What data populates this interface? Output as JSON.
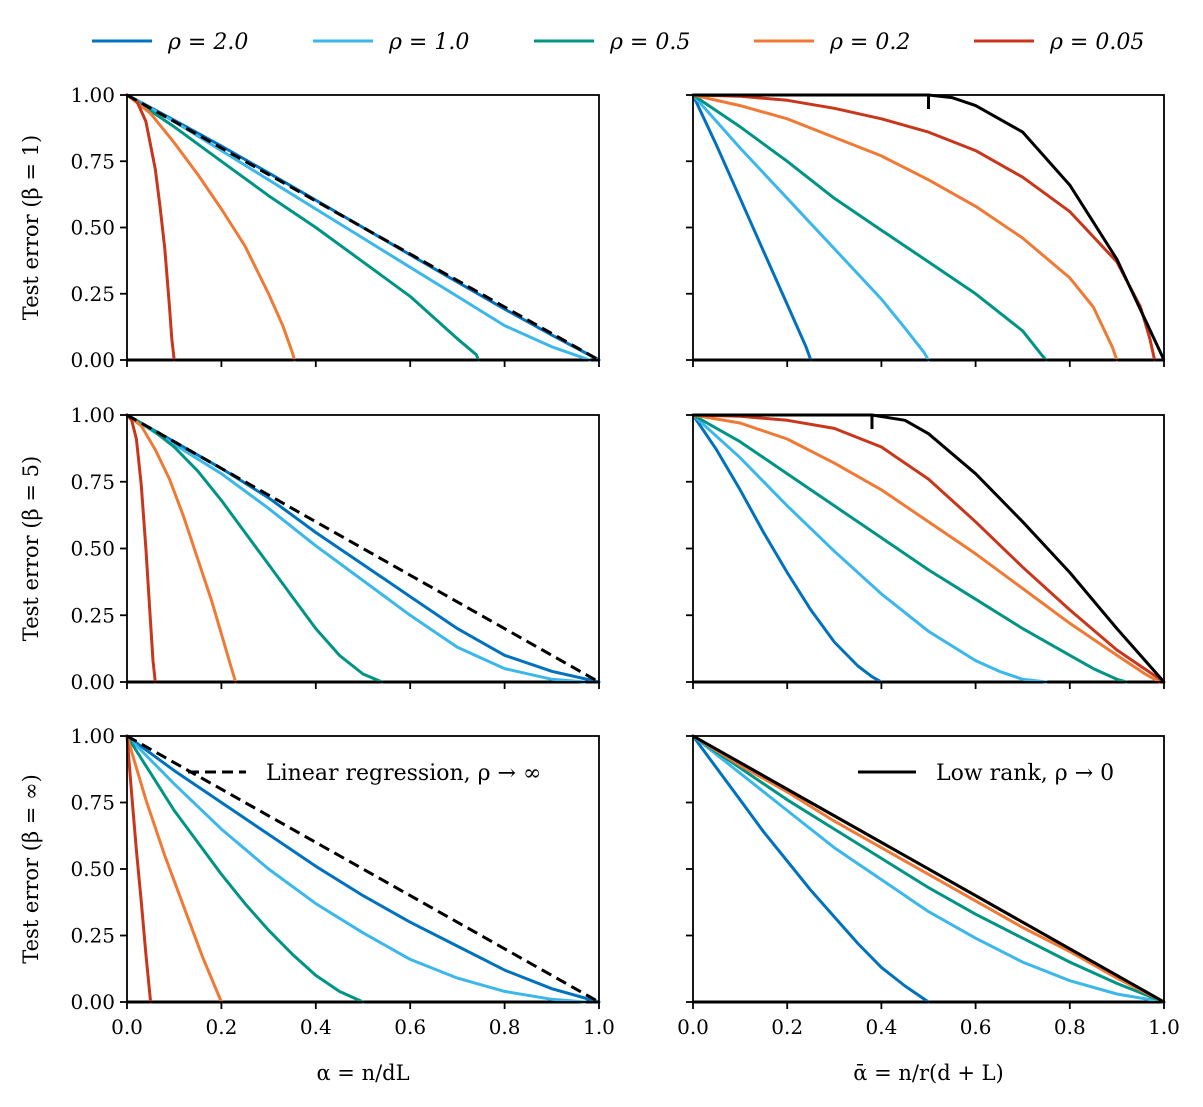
{
  "chart_data": {
    "type": "line",
    "legend": [
      {
        "label": "ρ = 2.0",
        "color": "#0072bd"
      },
      {
        "label": "ρ = 1.0",
        "color": "#3bb7ea"
      },
      {
        "label": "ρ = 0.5",
        "color": "#009485"
      },
      {
        "label": "ρ = 0.2",
        "color": "#ef7a35"
      },
      {
        "label": "ρ = 0.05",
        "color": "#c8361b"
      }
    ],
    "xlim": [
      0,
      1
    ],
    "ylim": [
      0,
      1
    ],
    "xticks": [
      "0.0",
      "0.2",
      "0.4",
      "0.6",
      "0.8",
      "1.0"
    ],
    "yticks": [
      "0.00",
      "0.25",
      "0.50",
      "0.75",
      "1.00"
    ],
    "row_ylabels": [
      "Test error (β = 1)",
      "Test error (β = 5)",
      "Test error (β = ∞)"
    ],
    "xlabels": [
      "α = n/dL",
      "ᾱ = n/r(d + L)"
    ],
    "reference": {
      "left_label": "Linear regression, ρ → ∞",
      "left_style": "dashed",
      "right_label": "Low rank, ρ → 0",
      "right_style": "solid",
      "color": "#000000"
    },
    "panels": [
      {
        "row": 0,
        "col": 0,
        "series": [
          {
            "name": "ρ = 2.0",
            "x": [
              0,
              0.1,
              0.2,
              0.3,
              0.4,
              0.5,
              0.6,
              0.7,
              0.8,
              0.9,
              1.0
            ],
            "y": [
              1.0,
              0.905,
              0.807,
              0.706,
              0.603,
              0.5,
              0.397,
              0.294,
              0.192,
              0.094,
              0.0
            ]
          },
          {
            "name": "ρ = 1.0",
            "x": [
              0,
              0.1,
              0.2,
              0.3,
              0.4,
              0.5,
              0.6,
              0.7,
              0.8,
              0.9,
              0.98
            ],
            "y": [
              1.0,
              0.9,
              0.79,
              0.68,
              0.57,
              0.46,
              0.35,
              0.24,
              0.13,
              0.05,
              0.0
            ]
          },
          {
            "name": "ρ = 0.5",
            "x": [
              0,
              0.1,
              0.2,
              0.3,
              0.4,
              0.5,
              0.6,
              0.7,
              0.74,
              0.745
            ],
            "y": [
              1.0,
              0.88,
              0.75,
              0.62,
              0.5,
              0.37,
              0.24,
              0.08,
              0.02,
              0.0
            ]
          },
          {
            "name": "ρ = 0.2",
            "x": [
              0,
              0.05,
              0.1,
              0.15,
              0.2,
              0.25,
              0.3,
              0.33,
              0.35,
              0.355
            ],
            "y": [
              1.0,
              0.93,
              0.82,
              0.7,
              0.57,
              0.43,
              0.25,
              0.13,
              0.03,
              0.0
            ]
          },
          {
            "name": "ρ = 0.05",
            "x": [
              0,
              0.02,
              0.04,
              0.06,
              0.07,
              0.08,
              0.09,
              0.095,
              0.1
            ],
            "y": [
              1.0,
              0.98,
              0.9,
              0.72,
              0.58,
              0.42,
              0.2,
              0.08,
              0.0
            ]
          }
        ],
        "reference_x": [
          0,
          1
        ],
        "reference_y": [
          1,
          0
        ]
      },
      {
        "row": 0,
        "col": 1,
        "series": [
          {
            "name": "ρ = 2.0",
            "x": [
              0,
              0.05,
              0.1,
              0.15,
              0.2,
              0.24,
              0.25
            ],
            "y": [
              1.0,
              0.81,
              0.61,
              0.41,
              0.21,
              0.05,
              0.0
            ]
          },
          {
            "name": "ρ = 1.0",
            "x": [
              0,
              0.1,
              0.2,
              0.3,
              0.4,
              0.45,
              0.49,
              0.5
            ],
            "y": [
              1.0,
              0.8,
              0.61,
              0.42,
              0.23,
              0.12,
              0.03,
              0.0
            ]
          },
          {
            "name": "ρ = 0.5",
            "x": [
              0,
              0.1,
              0.2,
              0.3,
              0.4,
              0.5,
              0.6,
              0.7,
              0.74,
              0.75
            ],
            "y": [
              1.0,
              0.88,
              0.75,
              0.61,
              0.49,
              0.37,
              0.25,
              0.11,
              0.02,
              0.0
            ]
          },
          {
            "name": "ρ = 0.2",
            "x": [
              0,
              0.1,
              0.2,
              0.3,
              0.4,
              0.5,
              0.6,
              0.7,
              0.8,
              0.85,
              0.89,
              0.9
            ],
            "y": [
              1.0,
              0.96,
              0.91,
              0.84,
              0.77,
              0.68,
              0.58,
              0.46,
              0.31,
              0.2,
              0.05,
              0.0
            ]
          },
          {
            "name": "ρ = 0.05",
            "x": [
              0,
              0.1,
              0.2,
              0.3,
              0.4,
              0.5,
              0.6,
              0.7,
              0.8,
              0.9,
              0.95,
              0.97,
              0.98
            ],
            "y": [
              1.0,
              0.995,
              0.98,
              0.95,
              0.91,
              0.86,
              0.79,
              0.69,
              0.56,
              0.37,
              0.2,
              0.08,
              0.0
            ]
          }
        ],
        "reference_x": [
          0,
          0.5,
          0.55,
          0.6,
          0.7,
          0.8,
          0.9,
          1.0
        ],
        "reference_y": [
          1,
          1,
          0.99,
          0.96,
          0.86,
          0.66,
          0.38,
          0.0
        ],
        "reference_marker": {
          "x": 0.5,
          "y": 1.0
        }
      },
      {
        "row": 1,
        "col": 0,
        "series": [
          {
            "name": "ρ = 2.0",
            "x": [
              0,
              0.1,
              0.2,
              0.3,
              0.4,
              0.5,
              0.6,
              0.7,
              0.8,
              0.9,
              1.0
            ],
            "y": [
              1.0,
              0.9,
              0.8,
              0.69,
              0.56,
              0.44,
              0.32,
              0.2,
              0.1,
              0.04,
              0.0
            ]
          },
          {
            "name": "ρ = 1.0",
            "x": [
              0,
              0.1,
              0.2,
              0.3,
              0.4,
              0.5,
              0.6,
              0.7,
              0.8,
              0.9,
              0.97
            ],
            "y": [
              1.0,
              0.89,
              0.78,
              0.65,
              0.51,
              0.38,
              0.25,
              0.13,
              0.05,
              0.01,
              0.0
            ]
          },
          {
            "name": "ρ = 0.5",
            "x": [
              0,
              0.05,
              0.1,
              0.15,
              0.2,
              0.25,
              0.3,
              0.35,
              0.4,
              0.45,
              0.5,
              0.54
            ],
            "y": [
              1.0,
              0.95,
              0.88,
              0.79,
              0.68,
              0.56,
              0.44,
              0.32,
              0.2,
              0.1,
              0.03,
              0.0
            ]
          },
          {
            "name": "ρ = 0.2",
            "x": [
              0,
              0.03,
              0.06,
              0.09,
              0.12,
              0.15,
              0.18,
              0.2,
              0.22,
              0.23
            ],
            "y": [
              1.0,
              0.96,
              0.87,
              0.76,
              0.62,
              0.46,
              0.3,
              0.18,
              0.06,
              0.0
            ]
          },
          {
            "name": "ρ = 0.05",
            "x": [
              0,
              0.01,
              0.02,
              0.03,
              0.04,
              0.05,
              0.055,
              0.06
            ],
            "y": [
              1.0,
              0.98,
              0.91,
              0.74,
              0.5,
              0.22,
              0.08,
              0.0
            ]
          }
        ],
        "reference_x": [
          0,
          1
        ],
        "reference_y": [
          1,
          0
        ]
      },
      {
        "row": 1,
        "col": 1,
        "series": [
          {
            "name": "ρ = 2.0",
            "x": [
              0,
              0.05,
              0.1,
              0.15,
              0.2,
              0.25,
              0.3,
              0.35,
              0.38,
              0.4
            ],
            "y": [
              1.0,
              0.87,
              0.72,
              0.56,
              0.41,
              0.27,
              0.15,
              0.06,
              0.02,
              0.0
            ]
          },
          {
            "name": "ρ = 1.0",
            "x": [
              0,
              0.1,
              0.2,
              0.3,
              0.4,
              0.5,
              0.6,
              0.65,
              0.7,
              0.75
            ],
            "y": [
              1.0,
              0.84,
              0.66,
              0.49,
              0.33,
              0.19,
              0.08,
              0.04,
              0.01,
              0.0
            ]
          },
          {
            "name": "ρ = 0.5",
            "x": [
              0,
              0.1,
              0.2,
              0.3,
              0.4,
              0.5,
              0.6,
              0.7,
              0.8,
              0.85,
              0.9,
              0.92
            ],
            "y": [
              1.0,
              0.9,
              0.78,
              0.66,
              0.54,
              0.42,
              0.31,
              0.2,
              0.1,
              0.05,
              0.01,
              0.0
            ]
          },
          {
            "name": "ρ = 0.2",
            "x": [
              0,
              0.1,
              0.2,
              0.3,
              0.4,
              0.5,
              0.6,
              0.7,
              0.8,
              0.9,
              0.96,
              0.99
            ],
            "y": [
              1.0,
              0.97,
              0.91,
              0.82,
              0.72,
              0.6,
              0.48,
              0.35,
              0.22,
              0.1,
              0.03,
              0.0
            ]
          },
          {
            "name": "ρ = 0.05",
            "x": [
              0,
              0.1,
              0.2,
              0.3,
              0.4,
              0.5,
              0.6,
              0.7,
              0.8,
              0.9,
              1.0
            ],
            "y": [
              1.0,
              0.995,
              0.98,
              0.95,
              0.88,
              0.76,
              0.6,
              0.43,
              0.27,
              0.12,
              0.0
            ]
          }
        ],
        "reference_x": [
          0,
          0.38,
          0.45,
          0.5,
          0.6,
          0.7,
          0.8,
          0.9,
          1.0
        ],
        "reference_y": [
          1,
          1,
          0.98,
          0.93,
          0.78,
          0.6,
          0.41,
          0.2,
          0.0
        ],
        "reference_marker": {
          "x": 0.38,
          "y": 1.0
        }
      },
      {
        "row": 2,
        "col": 0,
        "series": [
          {
            "name": "ρ = 2.0",
            "x": [
              0,
              0.1,
              0.2,
              0.3,
              0.4,
              0.5,
              0.6,
              0.7,
              0.8,
              0.9,
              1.0
            ],
            "y": [
              1.0,
              0.87,
              0.75,
              0.63,
              0.51,
              0.4,
              0.3,
              0.21,
              0.12,
              0.05,
              0.0
            ]
          },
          {
            "name": "ρ = 1.0",
            "x": [
              0,
              0.1,
              0.2,
              0.3,
              0.4,
              0.5,
              0.6,
              0.7,
              0.8,
              0.9,
              0.97
            ],
            "y": [
              1.0,
              0.82,
              0.65,
              0.5,
              0.37,
              0.26,
              0.16,
              0.09,
              0.04,
              0.01,
              0.0
            ]
          },
          {
            "name": "ρ = 0.5",
            "x": [
              0,
              0.05,
              0.1,
              0.15,
              0.2,
              0.25,
              0.3,
              0.35,
              0.4,
              0.45,
              0.5
            ],
            "y": [
              1.0,
              0.86,
              0.72,
              0.6,
              0.48,
              0.37,
              0.27,
              0.18,
              0.1,
              0.04,
              0.0
            ]
          },
          {
            "name": "ρ = 0.2",
            "x": [
              0,
              0.04,
              0.08,
              0.12,
              0.16,
              0.2
            ],
            "y": [
              1.0,
              0.76,
              0.55,
              0.36,
              0.17,
              0.0
            ]
          },
          {
            "name": "ρ = 0.05",
            "x": [
              0,
              0.01,
              0.02,
              0.03,
              0.04,
              0.05
            ],
            "y": [
              1.0,
              0.78,
              0.57,
              0.38,
              0.18,
              0.0
            ]
          }
        ],
        "reference_x": [
          0,
          1
        ],
        "reference_y": [
          1,
          0
        ]
      },
      {
        "row": 2,
        "col": 1,
        "series": [
          {
            "name": "ρ = 2.0",
            "x": [
              0,
              0.05,
              0.1,
              0.15,
              0.2,
              0.25,
              0.3,
              0.35,
              0.4,
              0.45,
              0.5
            ],
            "y": [
              1.0,
              0.88,
              0.76,
              0.64,
              0.53,
              0.42,
              0.32,
              0.22,
              0.13,
              0.06,
              0.0
            ]
          },
          {
            "name": "ρ = 1.0",
            "x": [
              0,
              0.1,
              0.2,
              0.3,
              0.4,
              0.5,
              0.6,
              0.7,
              0.8,
              0.9,
              1.0
            ],
            "y": [
              1.0,
              0.86,
              0.72,
              0.58,
              0.46,
              0.34,
              0.24,
              0.15,
              0.08,
              0.03,
              0.0
            ]
          },
          {
            "name": "ρ = 0.5",
            "x": [
              0,
              0.1,
              0.2,
              0.3,
              0.4,
              0.5,
              0.6,
              0.7,
              0.8,
              0.9,
              1.0
            ],
            "y": [
              1.0,
              0.88,
              0.76,
              0.65,
              0.54,
              0.43,
              0.33,
              0.24,
              0.15,
              0.07,
              0.0
            ]
          },
          {
            "name": "ρ = 0.2",
            "x": [
              0,
              0.1,
              0.2,
              0.3,
              0.4,
              0.5,
              0.6,
              0.7,
              0.8,
              0.9,
              1.0
            ],
            "y": [
              1.0,
              0.89,
              0.79,
              0.68,
              0.58,
              0.48,
              0.38,
              0.28,
              0.19,
              0.09,
              0.0
            ]
          },
          {
            "name": "ρ = 0.05",
            "x": [
              0,
              0.1,
              0.2,
              0.3,
              0.4,
              0.5,
              0.6,
              0.7,
              0.8,
              0.9,
              1.0
            ],
            "y": [
              1.0,
              0.9,
              0.8,
              0.7,
              0.6,
              0.5,
              0.4,
              0.3,
              0.2,
              0.1,
              0.0
            ]
          }
        ],
        "reference_x": [
          0,
          1
        ],
        "reference_y": [
          1,
          0
        ]
      }
    ]
  }
}
